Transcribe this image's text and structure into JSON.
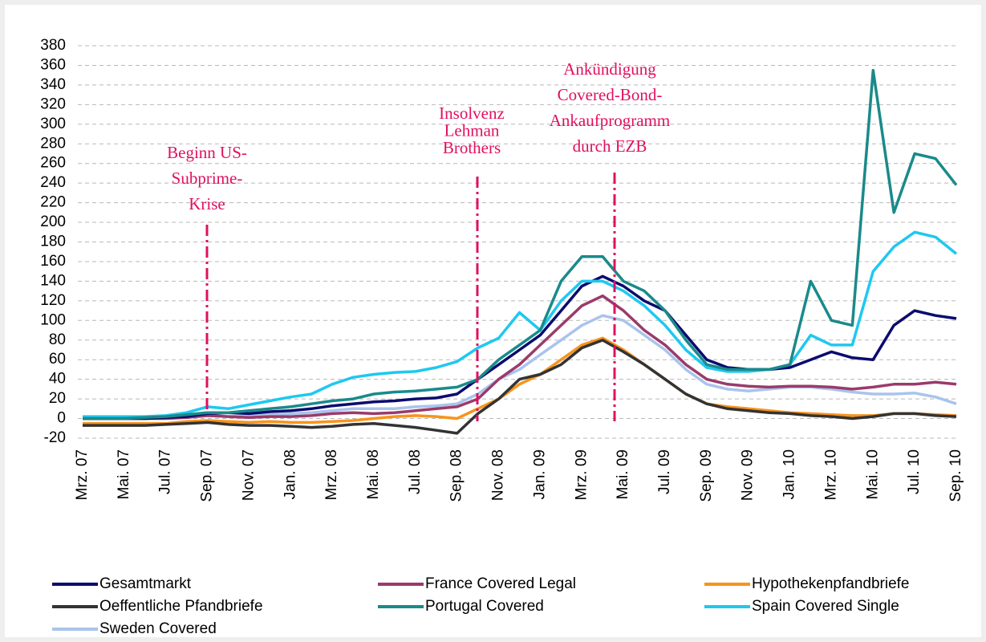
{
  "chart_data": {
    "type": "line",
    "categories": [
      "Mrz. 07",
      null,
      "Mai. 07",
      null,
      "Jul. 07",
      null,
      "Sep. 07",
      null,
      "Nov. 07",
      null,
      "Jan. 08",
      null,
      "Mrz. 08",
      null,
      "Mai. 08",
      null,
      "Jul. 08",
      null,
      "Sep. 08",
      null,
      "Nov. 08",
      null,
      "Jan. 09",
      null,
      "Mrz. 09",
      null,
      "Mai. 09",
      null,
      "Jul. 09",
      null,
      "Sep. 09",
      null,
      "Nov. 09",
      null,
      "Jan. 10",
      null,
      "Mrz. 10",
      null,
      "Mai. 10",
      null,
      "Jul. 10",
      null,
      "Sep. 10"
    ],
    "ylim": [
      -20,
      380
    ],
    "yticks": [
      -20,
      0,
      20,
      40,
      60,
      80,
      100,
      120,
      140,
      160,
      180,
      200,
      220,
      240,
      260,
      280,
      300,
      320,
      340,
      360,
      380
    ],
    "grid": true,
    "annotations": [
      {
        "lines": [
          "Beginn US-",
          "Subprime-",
          "Krise"
        ]
      },
      {
        "lines": [
          "Insolvenz",
          "Lehman",
          "Brothers"
        ]
      },
      {
        "lines": [
          "Ankündigung",
          "Covered-Bond-",
          "Ankaufprogramm",
          "durch EZB"
        ]
      }
    ],
    "series": [
      {
        "name": "Gesamtmarkt",
        "color": "#0b0b6e",
        "values": [
          0,
          0,
          0,
          0,
          1,
          2,
          5,
          6,
          5,
          7,
          8,
          10,
          13,
          15,
          17,
          18,
          20,
          21,
          25,
          40,
          55,
          70,
          85,
          110,
          135,
          145,
          135,
          120,
          110,
          85,
          60,
          52,
          50,
          50,
          52,
          60,
          68,
          62,
          60,
          95,
          110,
          105,
          102
        ]
      },
      {
        "name": "France Covered Legal",
        "color": "#9b3a6a",
        "values": [
          0,
          0,
          0,
          0,
          0,
          1,
          3,
          2,
          1,
          2,
          2,
          3,
          5,
          6,
          5,
          6,
          8,
          10,
          12,
          20,
          40,
          55,
          75,
          95,
          115,
          125,
          110,
          90,
          75,
          55,
          40,
          35,
          33,
          32,
          33,
          33,
          32,
          30,
          32,
          35,
          35,
          37,
          35
        ]
      },
      {
        "name": "Hypothekenpfandbriefe",
        "color": "#f7941d",
        "values": [
          -5,
          -5,
          -5,
          -5,
          -5,
          -3,
          -2,
          -3,
          -4,
          -3,
          -4,
          -4,
          -3,
          -2,
          0,
          2,
          3,
          2,
          0,
          10,
          20,
          35,
          45,
          60,
          75,
          82,
          70,
          55,
          40,
          25,
          15,
          12,
          10,
          8,
          6,
          5,
          4,
          3,
          3,
          5,
          5,
          4,
          3
        ]
      },
      {
        "name": "Oeffentliche Pfandbriefe",
        "color": "#333333",
        "values": [
          -7,
          -7,
          -7,
          -7,
          -6,
          -5,
          -4,
          -6,
          -7,
          -7,
          -8,
          -9,
          -8,
          -6,
          -5,
          -7,
          -9,
          -12,
          -15,
          5,
          20,
          40,
          45,
          55,
          72,
          80,
          68,
          55,
          40,
          25,
          15,
          10,
          8,
          6,
          5,
          3,
          2,
          0,
          2,
          5,
          5,
          3,
          2
        ]
      },
      {
        "name": "Portugal Covered",
        "color": "#1a8a8a",
        "values": [
          0,
          0,
          0,
          1,
          2,
          4,
          6,
          6,
          8,
          10,
          12,
          15,
          18,
          20,
          25,
          27,
          28,
          30,
          32,
          40,
          60,
          75,
          90,
          140,
          165,
          165,
          140,
          130,
          110,
          80,
          55,
          50,
          50,
          50,
          55,
          140,
          100,
          95,
          355,
          210,
          270,
          265,
          238
        ]
      },
      {
        "name": "Spain Covered Single",
        "color": "#1ec8f0",
        "values": [
          2,
          2,
          2,
          2,
          3,
          6,
          12,
          10,
          14,
          18,
          22,
          25,
          35,
          42,
          45,
          47,
          48,
          52,
          58,
          72,
          82,
          108,
          90,
          120,
          140,
          140,
          130,
          115,
          95,
          70,
          52,
          48,
          48,
          50,
          55,
          85,
          75,
          75,
          150,
          175,
          190,
          185,
          168
        ]
      },
      {
        "name": "Sweden Covered",
        "color": "#a9c4eb",
        "values": [
          0,
          0,
          0,
          0,
          1,
          2,
          3,
          2,
          3,
          4,
          5,
          6,
          8,
          10,
          10,
          10,
          12,
          13,
          15,
          25,
          40,
          50,
          65,
          80,
          95,
          105,
          100,
          85,
          70,
          50,
          35,
          30,
          28,
          30,
          32,
          32,
          30,
          27,
          25,
          25,
          26,
          22,
          15
        ]
      }
    ]
  }
}
